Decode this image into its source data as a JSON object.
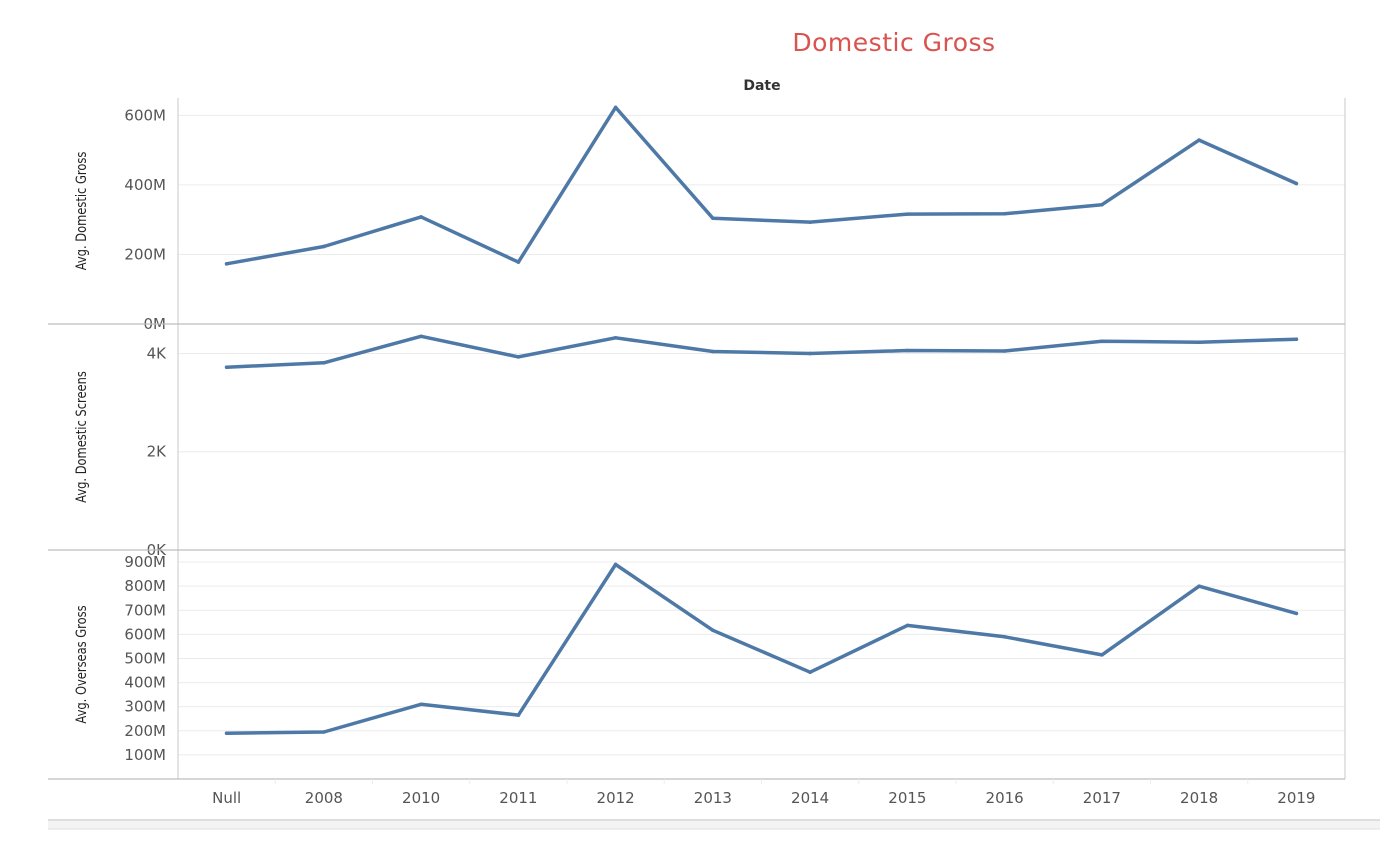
{
  "colors": {
    "title": "#d9534f",
    "line": "#4e79a7",
    "grid": "#ececec",
    "axis": "#c8c8c8",
    "divider": "#bdbdbd"
  },
  "chart_data": {
    "type": "line",
    "title": "Domestic Gross",
    "column_header": "Date",
    "xlabel": "",
    "categories": [
      "Null",
      "2008",
      "2010",
      "2011",
      "2012",
      "2013",
      "2014",
      "2015",
      "2016",
      "2017",
      "2018",
      "2019"
    ],
    "grid": true,
    "legend": "none",
    "panels": [
      {
        "ylabel": "Avg. Domestic Gross",
        "ylim": [
          0,
          650
        ],
        "unit": "M",
        "yticks": [
          0,
          200,
          400,
          600
        ],
        "ytick_labels": [
          "0M",
          "200M",
          "400M",
          "600M"
        ],
        "values": [
          173,
          223,
          308,
          178,
          623,
          304,
          293,
          316,
          317,
          343,
          529,
          404
        ]
      },
      {
        "ylabel": "Avg. Domestic Screens",
        "ylim": [
          0,
          4600
        ],
        "unit": "K",
        "yticks": [
          0,
          2000,
          4000
        ],
        "ytick_labels": [
          "0K",
          "2K",
          "4K"
        ],
        "values": [
          3720,
          3810,
          4350,
          3930,
          4320,
          4040,
          4000,
          4060,
          4050,
          4250,
          4230,
          4290
        ]
      },
      {
        "ylabel": "Avg. Overseas Gross",
        "ylim": [
          0,
          950
        ],
        "unit": "M",
        "yticks": [
          100,
          200,
          300,
          400,
          500,
          600,
          700,
          800,
          900
        ],
        "ytick_labels": [
          "100M",
          "200M",
          "300M",
          "400M",
          "500M",
          "600M",
          "700M",
          "800M",
          "900M"
        ],
        "values": [
          190,
          195,
          310,
          265,
          890,
          617,
          443,
          637,
          590,
          515,
          800,
          687
        ]
      }
    ]
  }
}
